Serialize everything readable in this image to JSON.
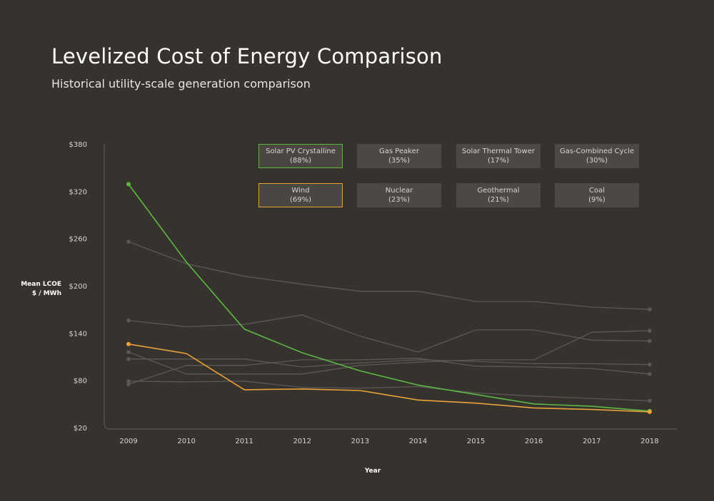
{
  "chart_data": {
    "type": "line",
    "title": "Levelized Cost of Energy Comparison",
    "subtitle": "Historical utility-scale generation comparison",
    "ylabel": [
      "Mean LCOE",
      "$ / MWh"
    ],
    "xlabel": "Year",
    "x": [
      "2009",
      "2010",
      "2011",
      "2012",
      "2013",
      "2014",
      "2015",
      "2016",
      "2017",
      "2018"
    ],
    "ylim": [
      20,
      380
    ],
    "yticks": [
      20,
      80,
      140,
      200,
      260,
      320,
      380
    ],
    "ytick_labels": [
      "$20",
      "$80",
      "$140",
      "$200",
      "$260",
      "$320",
      "$380"
    ],
    "grid": false,
    "legend_position": "top",
    "series": [
      {
        "name": "Solar PV Crystalline",
        "pct": "(88%)",
        "color": "#5db745",
        "highlight": true,
        "values": [
          329,
          230,
          145,
          115,
          92,
          74,
          62,
          50,
          47,
          41
        ]
      },
      {
        "name": "Gas Peaker",
        "pct": "(35%)",
        "color": "#5c5855",
        "highlight": false,
        "values": [
          256,
          228,
          212,
          202,
          193,
          193,
          180,
          180,
          173,
          170
        ]
      },
      {
        "name": "Solar Thermal Tower",
        "pct": "(17%)",
        "color": "#5c5855",
        "highlight": false,
        "values": [
          156,
          148,
          151,
          163,
          136,
          116,
          144,
          144,
          131,
          130
        ]
      },
      {
        "name": "Gas-Combined Cycle",
        "pct": "(30%)",
        "color": "#5c5855",
        "highlight": false,
        "values": [
          75,
          99,
          99,
          106,
          106,
          108,
          98,
          97,
          95,
          88
        ]
      },
      {
        "name": "Wind",
        "pct": "(69%)",
        "color": "#e8a23a",
        "highlight": true,
        "values": [
          126,
          114,
          68,
          69,
          67,
          55,
          51,
          45,
          43,
          40
        ]
      },
      {
        "name": "Nuclear",
        "pct": "(23%)",
        "color": "#5c5855",
        "highlight": false,
        "values": [
          79,
          78,
          79,
          71,
          70,
          72,
          64,
          60,
          57,
          54
        ]
      },
      {
        "name": "Geothermal",
        "pct": "(21%)",
        "color": "#5c5855",
        "highlight": false,
        "values": [
          116,
          88,
          88,
          88,
          99,
          103,
          106,
          106,
          141,
          143
        ]
      },
      {
        "name": "Coal",
        "pct": "(9%)",
        "color": "#5c5855",
        "highlight": false,
        "values": [
          107,
          107,
          107,
          97,
          102,
          106,
          104,
          101,
          101,
          100
        ]
      }
    ]
  }
}
